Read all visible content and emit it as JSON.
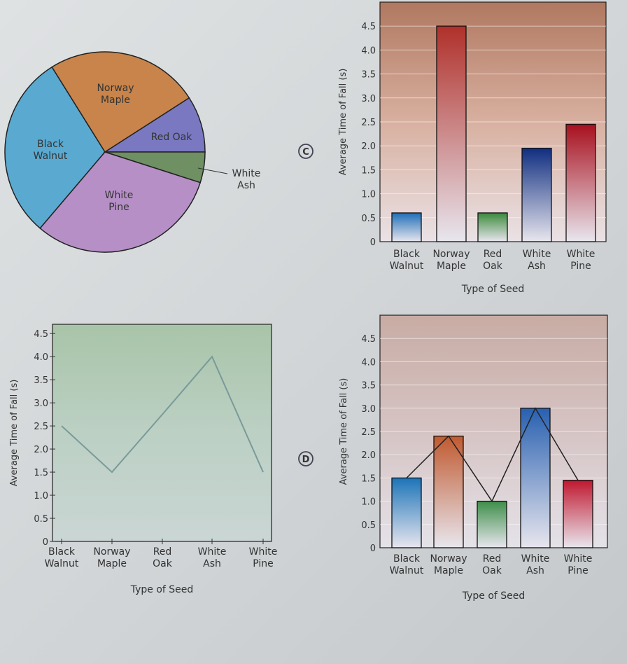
{
  "chart_data": [
    {
      "type": "pie",
      "labels": [
        "Black Walnut",
        "Norway Maple",
        "Red Oak",
        "White Ash",
        "White Pine"
      ],
      "label_lines": [
        [
          "Black",
          "Walnut"
        ],
        [
          "Norway",
          "Maple"
        ],
        [
          "Red Oak"
        ],
        [
          "White",
          "Ash"
        ],
        [
          "White",
          "Pine"
        ]
      ],
      "values": [
        30,
        25,
        9,
        5,
        31
      ],
      "colors": [
        "#5aa9d0",
        "#c8844a",
        "#7a78c0",
        "#6e9062",
        "#b68fc6"
      ]
    },
    {
      "type": "bar",
      "marker": "C",
      "categories": [
        [
          "Black",
          "Walnut"
        ],
        [
          "Norway",
          "Maple"
        ],
        [
          "Red",
          "Oak"
        ],
        [
          "White",
          "Ash"
        ],
        [
          "White",
          "Pine"
        ]
      ],
      "values": [
        0.6,
        4.5,
        0.6,
        1.95,
        2.45
      ],
      "colors": [
        "#1f6fb8",
        "#b0302a",
        "#3c8a3c",
        "#102e80",
        "#a8101e"
      ],
      "ylabel": "Average Time of Fall (s)",
      "xlabel": "Type of Seed",
      "ylim": [
        0,
        5
      ],
      "yticks": [
        "0",
        "0.5",
        "1.0",
        "1.5",
        "2.0",
        "2.5",
        "3.0",
        "3.5",
        "4.0",
        "4.5"
      ]
    },
    {
      "type": "line",
      "categories": [
        [
          "Black",
          "Walnut"
        ],
        [
          "Norway",
          "Maple"
        ],
        [
          "Red",
          "Oak"
        ],
        [
          "White",
          "Ash"
        ],
        [
          "White",
          "Pine"
        ]
      ],
      "values": [
        2.5,
        1.5,
        2.75,
        4.0,
        1.5
      ],
      "ylabel": "Average Time of Fall (s)",
      "xlabel": "Type of Seed",
      "ylim": [
        0,
        4.7
      ],
      "yticks": [
        "0",
        "0.5",
        "1.0",
        "1.5",
        "2.0",
        "2.5",
        "3.0",
        "3.5",
        "4.0",
        "4.5"
      ]
    },
    {
      "type": "bar",
      "marker": "D",
      "categories": [
        [
          "Black",
          "Walnut"
        ],
        [
          "Norway",
          "Maple"
        ],
        [
          "Red",
          "Oak"
        ],
        [
          "White",
          "Ash"
        ],
        [
          "White",
          "Pine"
        ]
      ],
      "values": [
        1.5,
        2.4,
        1.0,
        3.0,
        1.45
      ],
      "line_overlay": true,
      "colors": [
        "#1c74b8",
        "#c05a30",
        "#3e8e4a",
        "#2860b0",
        "#c01830"
      ],
      "ylabel": "Average Time of Fall (s)",
      "xlabel": "Type of Seed",
      "ylim": [
        0,
        5
      ],
      "yticks": [
        "0",
        "0.5",
        "1.0",
        "1.5",
        "2.0",
        "2.5",
        "3.0",
        "3.5",
        "4.0",
        "4.5"
      ]
    }
  ]
}
